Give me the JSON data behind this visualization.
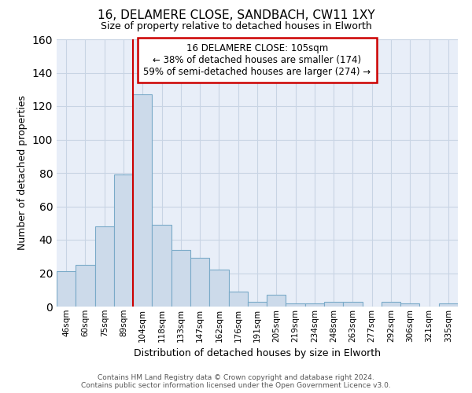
{
  "title1": "16, DELAMERE CLOSE, SANDBACH, CW11 1XY",
  "title2": "Size of property relative to detached houses in Elworth",
  "xlabel": "Distribution of detached houses by size in Elworth",
  "ylabel": "Number of detached properties",
  "categories": [
    "46sqm",
    "60sqm",
    "75sqm",
    "89sqm",
    "104sqm",
    "118sqm",
    "133sqm",
    "147sqm",
    "162sqm",
    "176sqm",
    "191sqm",
    "205sqm",
    "219sqm",
    "234sqm",
    "248sqm",
    "263sqm",
    "277sqm",
    "292sqm",
    "306sqm",
    "321sqm",
    "335sqm"
  ],
  "values": [
    21,
    25,
    48,
    79,
    127,
    49,
    34,
    29,
    22,
    9,
    3,
    7,
    2,
    2,
    3,
    3,
    0,
    3,
    2,
    0,
    2
  ],
  "bar_color": "#ccdaea",
  "bar_edge_color": "#7aaac8",
  "highlight_index": 4,
  "highlight_line_color": "#cc0000",
  "ylim": [
    0,
    160
  ],
  "yticks": [
    0,
    20,
    40,
    60,
    80,
    100,
    120,
    140,
    160
  ],
  "annotation_title": "16 DELAMERE CLOSE: 105sqm",
  "annotation_line1": "← 38% of detached houses are smaller (174)",
  "annotation_line2": "59% of semi-detached houses are larger (274) →",
  "annotation_box_color": "#ffffff",
  "annotation_box_edge": "#cc0000",
  "footer1": "Contains HM Land Registry data © Crown copyright and database right 2024.",
  "footer2": "Contains public sector information licensed under the Open Government Licence v3.0.",
  "ax_facecolor": "#e8eef8",
  "background_color": "#ffffff",
  "grid_color": "#c8d4e4"
}
